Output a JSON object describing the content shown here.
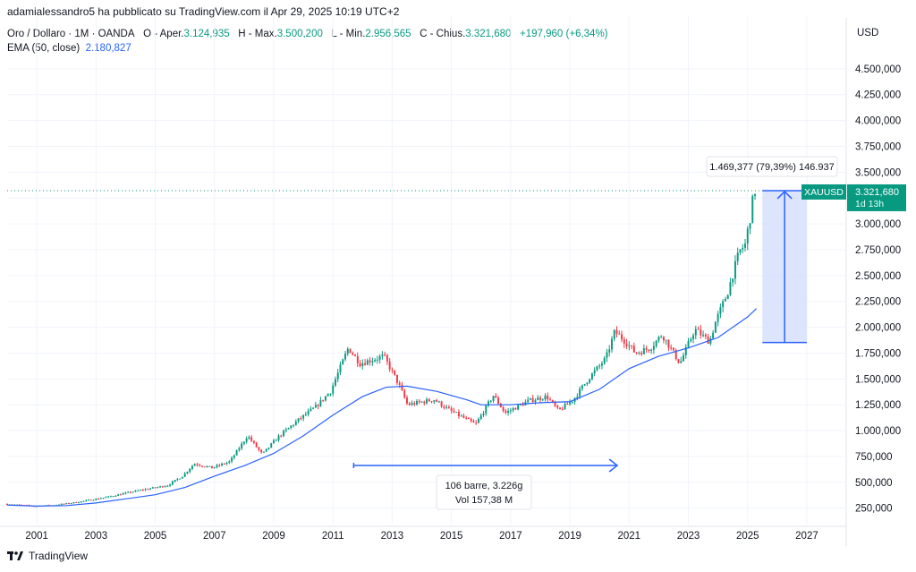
{
  "header": {
    "published_by": "adamialessandro5 ha pubblicato su TradingView.com il Apr 29, 2025 10:19 UTC+2"
  },
  "legend": {
    "symbol": "Oro / Dollaro · 1M · OANDA",
    "open_label": "O - Aper.",
    "open_value": "3.124,935",
    "high_label": "H - Max.",
    "high_value": "3.500,200",
    "low_label": "L - Min.",
    "low_value": "2.956,565",
    "close_label": "C - Chius.",
    "close_value": "3.321,680",
    "change_value": "+197,960 (+6,34%)",
    "ema_label": "EMA (50, close)",
    "ema_value": "2.180,827"
  },
  "axis": {
    "currency": "USD"
  },
  "price_tag": {
    "symbol": "XAUUSD",
    "price": "3.321,680",
    "countdown": "1d 13h"
  },
  "measure": {
    "label": "1.469,377 (79,39%) 146.937",
    "box_label_1": "106 barre, 3.226g",
    "box_label_2": "Vol 157,38 M"
  },
  "brand": {
    "name": "TradingView"
  },
  "colors": {
    "up": "#089981",
    "down": "#f23645",
    "ema": "#2962ff",
    "measure": "#2962ff",
    "measure_fill": "#d6e0fc"
  },
  "chart_data": {
    "type": "candlestick",
    "interval": "1M",
    "x_axis_ticks": [
      "2001",
      "2003",
      "2005",
      "2007",
      "2009",
      "2011",
      "2013",
      "2015",
      "2017",
      "2019",
      "2021",
      "2023",
      "2025",
      "2027"
    ],
    "y_axis_ticks": [
      250000,
      500000,
      750000,
      1000000,
      1250000,
      1500000,
      1750000,
      2000000,
      2250000,
      2500000,
      2750000,
      3000000,
      3250000,
      3500000,
      3750000,
      4000000,
      4250000,
      4500000
    ],
    "y_axis_tick_labels": [
      "250,000",
      "500,000",
      "750,000",
      "1.000,000",
      "1.250,000",
      "1.500,000",
      "1.750,000",
      "2.000,000",
      "2.250,000",
      "2.500,000",
      "2.750,000",
      "3.000,000",
      "3.250,000",
      "3.500,000",
      "3.750,000",
      "4.000,000",
      "4.250,000",
      "4.500,000"
    ],
    "ylim": [
      100000,
      4750000
    ],
    "xlim": [
      2000.0,
      2028.3
    ],
    "last_price": 3321680,
    "price_path": [
      [
        2000.0,
        290000
      ],
      [
        2001.0,
        270000
      ],
      [
        2001.7,
        280000
      ],
      [
        2002.5,
        310000
      ],
      [
        2003.5,
        360000
      ],
      [
        2004.5,
        420000
      ],
      [
        2005.5,
        470000
      ],
      [
        2006.0,
        560000
      ],
      [
        2006.4,
        680000
      ],
      [
        2007.0,
        640000
      ],
      [
        2007.6,
        700000
      ],
      [
        2008.2,
        950000
      ],
      [
        2008.7,
        770000
      ],
      [
        2009.2,
        930000
      ],
      [
        2009.9,
        1100000
      ],
      [
        2010.5,
        1230000
      ],
      [
        2011.0,
        1380000
      ],
      [
        2011.6,
        1800000
      ],
      [
        2012.0,
        1650000
      ],
      [
        2012.8,
        1720000
      ],
      [
        2013.3,
        1450000
      ],
      [
        2013.6,
        1250000
      ],
      [
        2014.5,
        1300000
      ],
      [
        2015.0,
        1200000
      ],
      [
        2015.9,
        1060000
      ],
      [
        2016.5,
        1340000
      ],
      [
        2016.9,
        1170000
      ],
      [
        2017.7,
        1290000
      ],
      [
        2018.3,
        1330000
      ],
      [
        2018.7,
        1190000
      ],
      [
        2019.2,
        1300000
      ],
      [
        2019.7,
        1500000
      ],
      [
        2020.3,
        1700000
      ],
      [
        2020.6,
        1960000
      ],
      [
        2021.0,
        1850000
      ],
      [
        2021.3,
        1750000
      ],
      [
        2021.8,
        1800000
      ],
      [
        2022.2,
        1930000
      ],
      [
        2022.8,
        1650000
      ],
      [
        2023.3,
        1980000
      ],
      [
        2023.8,
        1860000
      ],
      [
        2024.0,
        2050000
      ],
      [
        2024.4,
        2330000
      ],
      [
        2024.8,
        2730000
      ],
      [
        2025.0,
        2800000
      ],
      [
        2025.2,
        3110000
      ],
      [
        2025.3,
        3321680
      ]
    ],
    "ema_path": [
      [
        2000.0,
        280000
      ],
      [
        2001.0,
        270000
      ],
      [
        2002.0,
        275000
      ],
      [
        2003.0,
        300000
      ],
      [
        2004.0,
        340000
      ],
      [
        2005.0,
        380000
      ],
      [
        2006.0,
        450000
      ],
      [
        2007.0,
        560000
      ],
      [
        2008.0,
        660000
      ],
      [
        2009.0,
        780000
      ],
      [
        2010.0,
        950000
      ],
      [
        2011.0,
        1150000
      ],
      [
        2012.0,
        1330000
      ],
      [
        2012.8,
        1420000
      ],
      [
        2013.5,
        1430000
      ],
      [
        2014.5,
        1380000
      ],
      [
        2015.5,
        1300000
      ],
      [
        2016.0,
        1250000
      ],
      [
        2017.0,
        1250000
      ],
      [
        2018.0,
        1270000
      ],
      [
        2019.0,
        1280000
      ],
      [
        2020.0,
        1400000
      ],
      [
        2021.0,
        1600000
      ],
      [
        2022.0,
        1720000
      ],
      [
        2023.0,
        1800000
      ],
      [
        2024.0,
        1900000
      ],
      [
        2025.0,
        2100000
      ],
      [
        2025.3,
        2180827
      ]
    ]
  }
}
